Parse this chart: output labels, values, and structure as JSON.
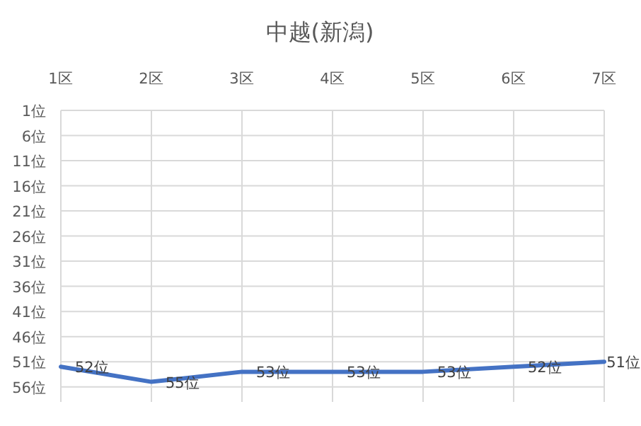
{
  "chart_data": {
    "type": "line",
    "title": "中越(新潟)",
    "categories": [
      "1区",
      "2区",
      "3区",
      "4区",
      "5区",
      "6区",
      "7区"
    ],
    "values": [
      52,
      55,
      53,
      53,
      53,
      52,
      51
    ],
    "value_labels": [
      "52位",
      "55位",
      "53位",
      "53位",
      "53位",
      "52位",
      "51位"
    ],
    "color": "#4472c4",
    "ylim": [
      59,
      1
    ],
    "yticks": [
      {
        "value": 1,
        "label": "1位"
      },
      {
        "value": 6,
        "label": "6位"
      },
      {
        "value": 11,
        "label": "11位"
      },
      {
        "value": 16,
        "label": "16位"
      },
      {
        "value": 21,
        "label": "21位"
      },
      {
        "value": 26,
        "label": "26位"
      },
      {
        "value": 31,
        "label": "31位"
      },
      {
        "value": 36,
        "label": "36位"
      },
      {
        "value": 41,
        "label": "41位"
      },
      {
        "value": 46,
        "label": "46位"
      },
      {
        "value": 51,
        "label": "51位"
      },
      {
        "value": 56,
        "label": "56位"
      }
    ],
    "grid": true
  }
}
